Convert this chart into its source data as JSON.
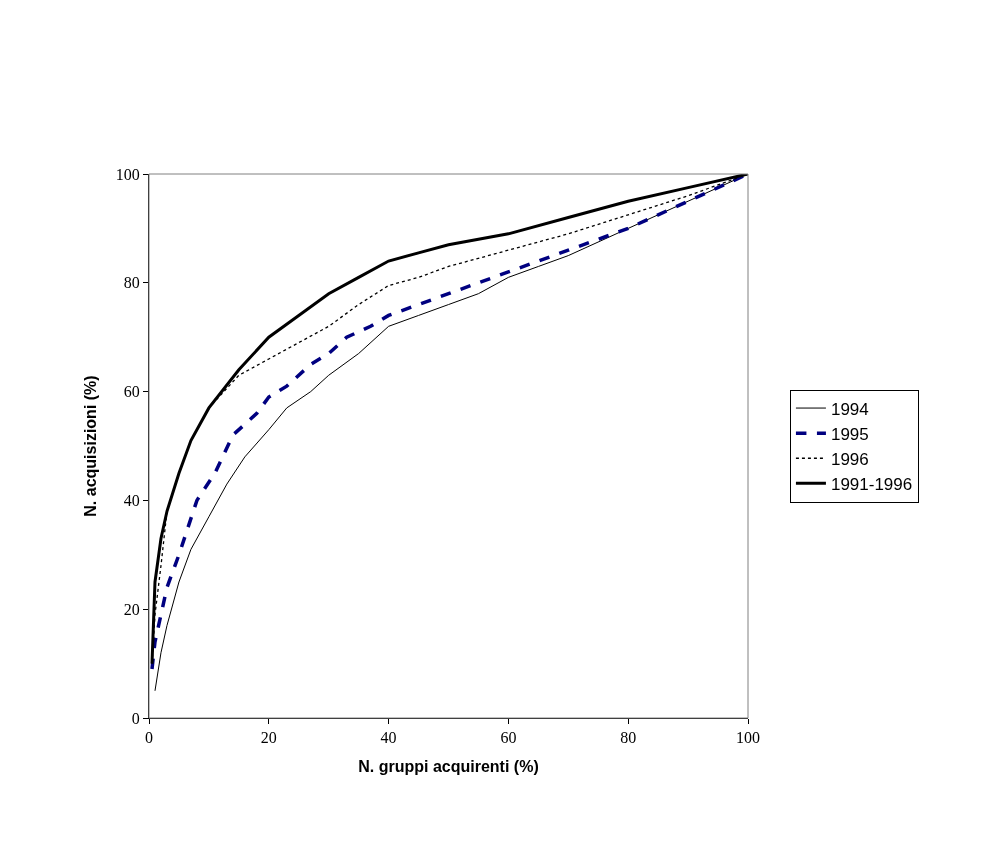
{
  "chart_data": {
    "type": "line",
    "xlabel": "N. gruppi acquirenti (%)",
    "ylabel": "N. acquisizioni (%)",
    "xlim": [
      0,
      100
    ],
    "ylim": [
      0,
      100
    ],
    "xticks": [
      0,
      20,
      40,
      60,
      80,
      100
    ],
    "yticks": [
      0,
      20,
      40,
      60,
      80,
      100
    ],
    "legend": "right",
    "series": [
      {
        "name": "1994",
        "color": "#000000",
        "line_style": "solid",
        "x": [
          1,
          2,
          3,
          5,
          7,
          10,
          13,
          16,
          20,
          23,
          27,
          30,
          35,
          40,
          45,
          50,
          55,
          60,
          65,
          70,
          80,
          90,
          100
        ],
        "values": [
          5,
          12,
          17,
          25,
          31,
          37,
          43,
          48,
          53,
          57,
          60,
          63,
          67,
          72,
          74,
          76,
          78,
          81,
          83,
          85,
          90,
          95,
          100
        ]
      },
      {
        "name": "1995",
        "color": "#000080",
        "line_style": "dashed",
        "x": [
          0.5,
          1,
          2,
          3,
          5,
          8,
          11,
          14,
          18,
          20,
          23,
          27,
          30,
          33,
          37,
          40,
          45,
          50,
          55,
          60,
          65,
          70,
          80,
          90,
          100
        ],
        "values": [
          9,
          14,
          19,
          24,
          30,
          40,
          45,
          52,
          56,
          59,
          61,
          65,
          67,
          70,
          72,
          74,
          76,
          78,
          80,
          82,
          84,
          86,
          90,
          95,
          100
        ]
      },
      {
        "name": "1996",
        "color": "#000000",
        "line_style": "dotted",
        "x": [
          0.5,
          1,
          2,
          3,
          5,
          7,
          10,
          15,
          20,
          25,
          30,
          35,
          40,
          45,
          50,
          60,
          70,
          80,
          90,
          100
        ],
        "values": [
          10,
          19,
          28,
          38,
          45,
          51,
          57,
          63,
          66,
          69,
          72,
          76,
          79.5,
          81,
          83,
          86,
          89,
          92.5,
          96,
          100
        ]
      },
      {
        "name": "1991-1996",
        "color": "#000000",
        "line_style": "solid",
        "x": [
          0.5,
          1,
          2,
          3,
          5,
          7,
          10,
          15,
          20,
          25,
          30,
          35,
          40,
          45,
          50,
          60,
          70,
          80,
          90,
          100
        ],
        "values": [
          10,
          25,
          33,
          38,
          45,
          51,
          57,
          64,
          70,
          74,
          78,
          81,
          84,
          85.5,
          87,
          89,
          92,
          95,
          97.5,
          100
        ]
      }
    ]
  }
}
